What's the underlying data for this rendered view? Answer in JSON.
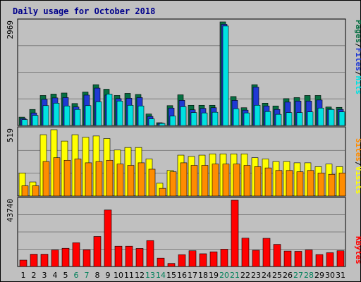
{
  "title": "Daily usage for October 2018",
  "colors": {
    "pages": "#066f42",
    "files": "#1f39d4",
    "hits": "#00e1e1",
    "visits": "#ffff00",
    "sites": "#ff8c00",
    "kbytes": "#ff0000",
    "weekend_label": "#00805a",
    "weekday_label": "#000000"
  },
  "chart_data": [
    {
      "type": "bar",
      "name": "hits-files-pages",
      "ylabel_max": "2969",
      "ylim": [
        0,
        2969
      ],
      "x": [
        1,
        2,
        3,
        4,
        5,
        6,
        7,
        8,
        9,
        10,
        11,
        12,
        13,
        14,
        15,
        16,
        17,
        18,
        19,
        20,
        21,
        22,
        23,
        24,
        25,
        26,
        27,
        28,
        29,
        30,
        31
      ],
      "series": [
        {
          "name": "Pages",
          "values": [
            240,
            460,
            860,
            900,
            930,
            630,
            960,
            1170,
            1040,
            860,
            920,
            890,
            330,
            80,
            570,
            880,
            580,
            580,
            580,
            2969,
            830,
            510,
            1170,
            640,
            560,
            770,
            800,
            860,
            860,
            530,
            520
          ]
        },
        {
          "name": "Files",
          "values": [
            200,
            360,
            750,
            790,
            800,
            530,
            870,
            1070,
            870,
            770,
            780,
            800,
            260,
            70,
            500,
            720,
            450,
            490,
            510,
            2900,
            720,
            440,
            1100,
            560,
            460,
            670,
            700,
            700,
            730,
            470,
            460
          ]
        },
        {
          "name": "Hits",
          "values": [
            170,
            290,
            570,
            640,
            560,
            460,
            570,
            680,
            900,
            700,
            580,
            560,
            190,
            60,
            270,
            540,
            370,
            360,
            380,
            2850,
            480,
            360,
            580,
            400,
            320,
            370,
            370,
            390,
            500,
            460,
            390
          ]
        }
      ],
      "legend": [
        "Pages",
        "Files",
        "Hits"
      ]
    },
    {
      "type": "bar",
      "name": "visits-sites",
      "ylabel_max": "519",
      "ylim": [
        0,
        519
      ],
      "x": [
        1,
        2,
        3,
        4,
        5,
        6,
        7,
        8,
        9,
        10,
        11,
        12,
        13,
        14,
        15,
        16,
        17,
        18,
        19,
        20,
        21,
        22,
        23,
        24,
        25,
        26,
        27,
        28,
        29,
        30,
        31
      ],
      "series": [
        {
          "name": "Visits",
          "values": [
            180,
            110,
            480,
            519,
            430,
            480,
            460,
            470,
            450,
            360,
            380,
            380,
            290,
            100,
            200,
            320,
            310,
            320,
            330,
            330,
            330,
            330,
            300,
            290,
            270,
            270,
            260,
            260,
            230,
            250,
            230
          ]
        },
        {
          "name": "Sites",
          "values": [
            80,
            80,
            270,
            300,
            280,
            290,
            260,
            270,
            280,
            250,
            240,
            260,
            210,
            60,
            190,
            260,
            240,
            240,
            250,
            250,
            250,
            240,
            230,
            220,
            200,
            200,
            190,
            200,
            180,
            170,
            180
          ]
        }
      ],
      "legend": [
        "Sites",
        "Visits"
      ]
    },
    {
      "type": "bar",
      "name": "kbytes",
      "ylabel_max": "43740",
      "ylim": [
        0,
        43740
      ],
      "x": [
        1,
        2,
        3,
        4,
        5,
        6,
        7,
        8,
        9,
        10,
        11,
        12,
        13,
        14,
        15,
        16,
        17,
        18,
        19,
        20,
        21,
        22,
        23,
        24,
        25,
        26,
        27,
        28,
        29,
        30,
        31
      ],
      "series": [
        {
          "name": "KBytes",
          "values": [
            4200,
            8100,
            8100,
            10900,
            12000,
            15700,
            11000,
            19800,
            37300,
            13400,
            13400,
            11900,
            17100,
            5500,
            2000,
            7800,
            10400,
            8400,
            9700,
            11400,
            43740,
            18700,
            10700,
            18600,
            14600,
            10200,
            10000,
            10900,
            7900,
            9100,
            10400
          ]
        }
      ],
      "legend": [
        "KBytes"
      ]
    }
  ],
  "day_labels": [
    "1",
    "2",
    "3",
    "4",
    "5",
    "6",
    "7",
    "8",
    "9",
    "10",
    "11",
    "12",
    "13",
    "14",
    "15",
    "16",
    "17",
    "18",
    "19",
    "20",
    "21",
    "22",
    "23",
    "24",
    "25",
    "26",
    "27",
    "28",
    "29",
    "30",
    "31"
  ],
  "weekend_days": [
    6,
    7,
    13,
    14,
    20,
    21,
    27,
    28
  ],
  "side_labels": {
    "top": [
      "Pages",
      "/",
      "Files",
      "/",
      "Hits"
    ],
    "middle": [
      "Sites",
      "/",
      "Visits"
    ],
    "bottom": [
      "KBytes"
    ]
  }
}
